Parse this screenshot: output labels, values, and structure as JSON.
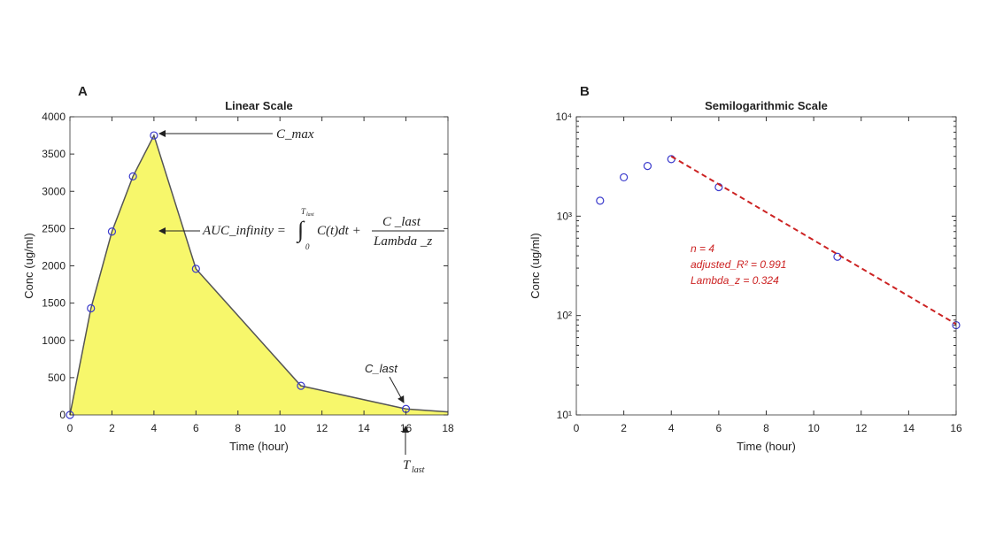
{
  "chart_data": [
    {
      "type": "area",
      "panel": "A",
      "title": "Linear Scale",
      "xlabel": "Time (hour)",
      "ylabel": "Conc (ug/ml)",
      "xlim": [
        0,
        18
      ],
      "xticks": [
        0,
        2,
        4,
        6,
        8,
        10,
        12,
        14,
        16,
        18
      ],
      "ylim": [
        0,
        4000
      ],
      "yticks": [
        0,
        500,
        1000,
        1500,
        2000,
        2500,
        3000,
        3500,
        4000
      ],
      "series": [
        {
          "kind": "area",
          "color": "#f7f76b",
          "line_color": "#555555",
          "x": [
            0,
            1,
            2,
            3,
            4,
            6,
            11,
            16,
            18
          ],
          "values": [
            0,
            1430,
            2460,
            3200,
            3750,
            1960,
            390,
            80,
            40
          ]
        },
        {
          "kind": "markers",
          "color": "#3a3acc",
          "x": [
            0,
            1,
            2,
            3,
            4,
            6,
            11,
            16
          ],
          "values": [
            0,
            1430,
            2460,
            3200,
            3750,
            1960,
            390,
            80
          ]
        }
      ],
      "annotations": {
        "cmax": "C_max",
        "clast": "C_last",
        "auc_lhs": "AUC_infinity =",
        "int_upper": "T",
        "int_upper_sub": "last",
        "int_lower": "0",
        "integrand": "C(t)dt +",
        "numerator": "C _last",
        "denominator": "Lambda _z",
        "tlast": "T",
        "tlast_sub": "last"
      }
    },
    {
      "type": "scatter",
      "panel": "B",
      "title": "Semilogarithmic Scale",
      "xlabel": "Time (hour)",
      "ylabel": "Conc (ug/ml)",
      "xlim": [
        0,
        16
      ],
      "xticks": [
        0,
        2,
        4,
        6,
        8,
        10,
        12,
        14,
        16
      ],
      "log_y": true,
      "ylim": [
        10,
        10000
      ],
      "yticks": [
        {
          "value": 10,
          "label": "10¹"
        },
        {
          "value": 100,
          "label": "10²"
        },
        {
          "value": 1000,
          "label": "10³"
        },
        {
          "value": 10000,
          "label": "10⁴"
        }
      ],
      "series": [
        {
          "kind": "markers",
          "color": "#3a3acc",
          "x": [
            1,
            2,
            3,
            4,
            6,
            11,
            16
          ],
          "values": [
            1430,
            2460,
            3200,
            3750,
            1960,
            390,
            80
          ]
        },
        {
          "kind": "dashed-line",
          "color": "#cc2222",
          "x": [
            4,
            16
          ],
          "values": [
            4000,
            82
          ]
        }
      ],
      "annotations": {
        "n": "n = 4",
        "r2": "adjusted_R² = 0.991",
        "lambda": "Lambda_z = 0.324"
      }
    }
  ]
}
